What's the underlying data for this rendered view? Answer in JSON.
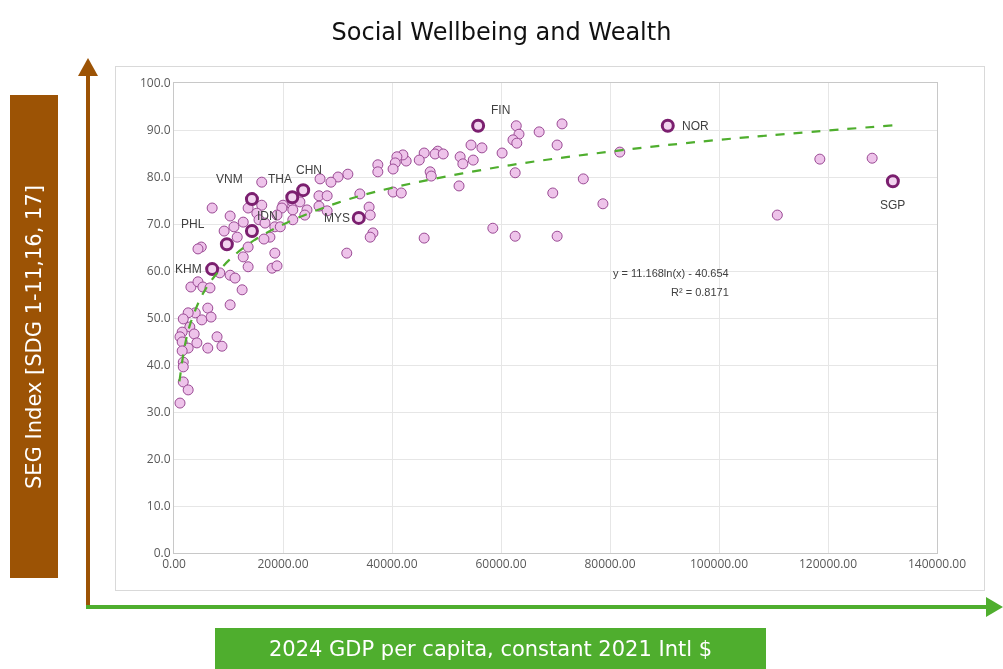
{
  "chart_data": {
    "type": "scatter",
    "title": "Social Wellbeing and Wealth",
    "xlabel": "2024 GDP per capita, constant 2021 Intl $",
    "ylabel": "SEG Index [SDG 1-11,16, 17]",
    "xlim": [
      0,
      140000
    ],
    "xticks": [
      {
        "value": 0,
        "label": "0.00"
      },
      {
        "value": 20000,
        "label": "20000.00"
      },
      {
        "value": 40000,
        "label": "40000.00"
      },
      {
        "value": 60000,
        "label": "60000.00"
      },
      {
        "value": 80000,
        "label": "80000.00"
      },
      {
        "value": 100000,
        "label": "100000.00"
      },
      {
        "value": 120000,
        "label": "120000.00"
      },
      {
        "value": 140000,
        "label": "140000.00"
      }
    ],
    "ylim": [
      0,
      100
    ],
    "yticks": [
      {
        "value": 0,
        "label": "0.0"
      },
      {
        "value": 10,
        "label": "10.0"
      },
      {
        "value": 20,
        "label": "20.0"
      },
      {
        "value": 30,
        "label": "30.0"
      },
      {
        "value": 40,
        "label": "40.0"
      },
      {
        "value": 50,
        "label": "50.0"
      },
      {
        "value": 60,
        "label": "60.0"
      },
      {
        "value": 70,
        "label": "70.0"
      },
      {
        "value": 80,
        "label": "80.0"
      },
      {
        "value": 90,
        "label": "90.0"
      },
      {
        "value": 100,
        "label": "100.0"
      }
    ],
    "grid": true,
    "marker": "circle",
    "series": [
      {
        "color": "#eec3ea",
        "x": [
          37400,
          37400,
          31900,
          30100,
          28800,
          26800,
          16100,
          7000,
          10300,
          13600,
          16100,
          20000,
          21800,
          23100,
          26600,
          28100,
          26600,
          28100,
          24400,
          21800,
          19800,
          18900,
          15200,
          34100,
          35800,
          36000,
          36500,
          36000,
          31700,
          12700,
          11000,
          9200,
          15600,
          16700,
          18500,
          19500,
          21800,
          24000,
          17600,
          16500,
          13600,
          11600,
          12700,
          13600,
          18500,
          18000,
          18900,
          5000,
          4400,
          8400,
          10300,
          11200,
          12500,
          3100,
          4400,
          5300,
          6600,
          10300,
          6200,
          6800,
          5100,
          3900,
          2600,
          1700,
          2900,
          1500,
          3700,
          1100,
          4200,
          1500,
          2600,
          6200,
          7900,
          8800,
          1500,
          1700,
          1700,
          1700,
          2600,
          1100,
          62800,
          63300,
          62200,
          62900,
          67000,
          71200,
          70300,
          54500,
          56500,
          60200,
          52500,
          54900,
          53000,
          48400,
          47900,
          49400,
          45900,
          45000,
          42600,
          42000,
          40900,
          40600,
          40200,
          47000,
          47200,
          40200,
          41700,
          52300,
          62600,
          45900,
          58500,
          62600,
          70300,
          69500,
          75100,
          78700,
          81800,
          110700,
          118500,
          128100
        ],
        "values": [
          82.6,
          81.1,
          80.6,
          80.0,
          78.9,
          79.6,
          78.9,
          73.4,
          71.7,
          73.4,
          74.0,
          74.0,
          74.7,
          74.7,
          76.0,
          76.0,
          73.8,
          72.8,
          73.0,
          73.0,
          73.4,
          71.9,
          72.3,
          76.4,
          73.6,
          71.9,
          68.1,
          67.2,
          63.8,
          70.4,
          69.4,
          68.5,
          70.9,
          70.2,
          69.4,
          69.4,
          70.9,
          71.9,
          67.2,
          66.8,
          65.1,
          67.2,
          63.0,
          60.9,
          63.8,
          60.6,
          61.1,
          65.1,
          64.7,
          59.6,
          59.1,
          58.5,
          56.0,
          56.6,
          57.7,
          56.6,
          56.4,
          52.8,
          52.1,
          50.2,
          49.6,
          51.1,
          51.1,
          49.8,
          48.1,
          47.0,
          46.6,
          46.0,
          44.7,
          44.9,
          43.6,
          43.6,
          46.0,
          44.0,
          43.0,
          40.6,
          39.6,
          36.4,
          34.7,
          31.9,
          90.9,
          89.1,
          87.9,
          87.2,
          89.6,
          91.3,
          86.8,
          86.8,
          86.2,
          85.1,
          84.3,
          83.6,
          82.8,
          85.5,
          84.9,
          84.9,
          85.1,
          83.6,
          83.4,
          84.7,
          84.3,
          83.0,
          81.7,
          81.1,
          80.2,
          76.8,
          76.6,
          78.1,
          80.9,
          67.0,
          69.1,
          67.4,
          67.4,
          76.6,
          79.6,
          74.3,
          85.3,
          71.9,
          83.8,
          84.0
        ]
      },
      {
        "color": "#7b1f6f",
        "x": [
          55800,
          90600,
          131900,
          23700,
          21700,
          14300,
          14300,
          33900,
          9700,
          7000
        ],
        "values": [
          90.9,
          90.9,
          79.1,
          77.2,
          75.7,
          75.3,
          68.5,
          71.3,
          65.7,
          60.4
        ]
      },
      {
        "type": "line",
        "color": "#4fae2e",
        "line_style": "dashed",
        "marker": "none",
        "x": [
          1000,
          2000,
          3000,
          5000,
          7000,
          10000,
          14000,
          20000,
          30000,
          40000,
          60000,
          80000,
          100000,
          132000
        ],
        "values": [
          36.5,
          44.2,
          48.8,
          54.5,
          58.2,
          62.2,
          66.0,
          69.9,
          74.5,
          77.7,
          82.2,
          85.4,
          87.9,
          91.0
        ]
      }
    ],
    "annotations": [
      {
        "text": "FIN",
        "x": 55800,
        "y": 90.9
      },
      {
        "text": "NOR",
        "x": 90600,
        "y": 90.9
      },
      {
        "text": "SGP",
        "x": 131900,
        "y": 79.1
      },
      {
        "text": "CHN",
        "x": 23700,
        "y": 77.2
      },
      {
        "text": "THA",
        "x": 21700,
        "y": 75.7
      },
      {
        "text": "VNM",
        "x": 14300,
        "y": 75.3
      },
      {
        "text": "IDN",
        "x": 14300,
        "y": 68.5
      },
      {
        "text": "MYS",
        "x": 33900,
        "y": 71.3
      },
      {
        "text": "PHL",
        "x": 9700,
        "y": 65.7
      },
      {
        "text": "KHM",
        "x": 7000,
        "y": 60.4
      },
      "y = 11.168ln(x) - 40.654",
      "R² = 0.8171"
    ]
  }
}
